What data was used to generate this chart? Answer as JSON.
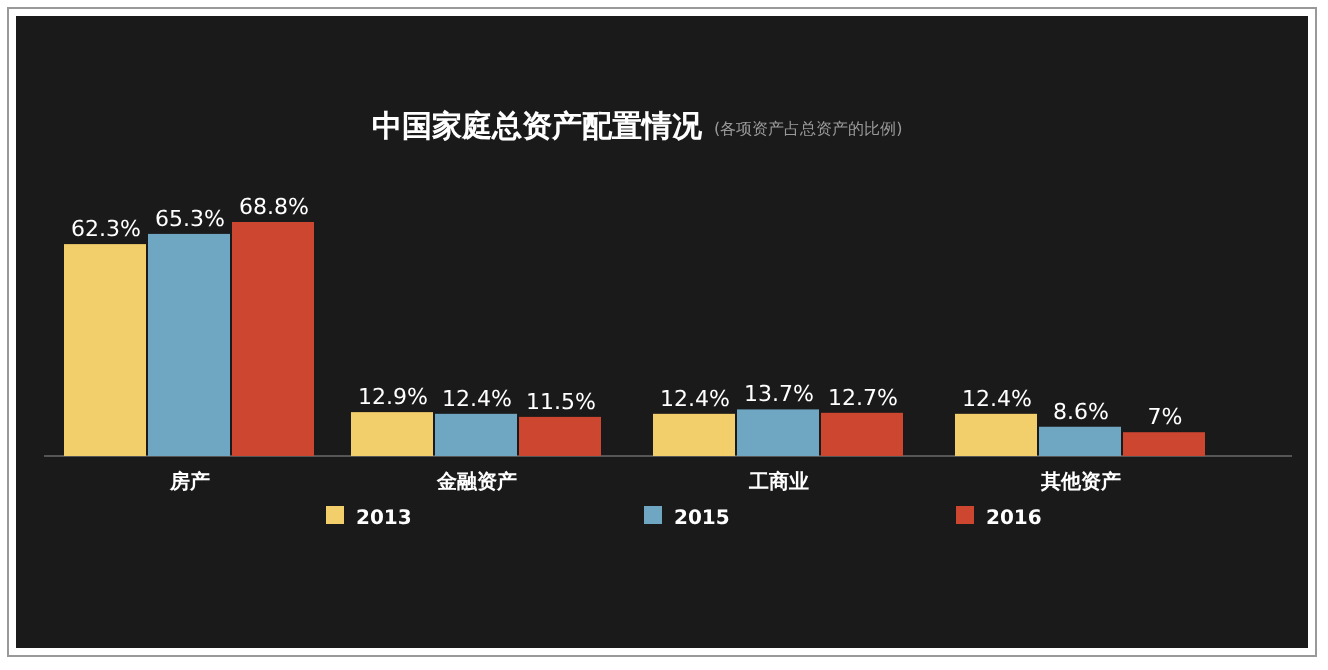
{
  "chart_data": {
    "type": "bar",
    "title": "中国家庭总资产配置情况",
    "subtitle": "(各项资产占总资产的比例)",
    "categories": [
      "房产",
      "金融资产",
      "工商业",
      "其他资产"
    ],
    "legend": "bottom",
    "series": [
      {
        "name": "2013",
        "color": "#f2cf6a",
        "values": [
          62.3,
          12.9,
          12.4,
          12.4
        ],
        "value_labels": [
          "62.3%",
          "12.9%",
          "12.4%",
          "12.4%"
        ]
      },
      {
        "name": "2015",
        "color": "#6fa6c2",
        "values": [
          65.3,
          12.4,
          13.7,
          8.6
        ],
        "value_labels": [
          "65.3%",
          "12.4%",
          "13.7%",
          "8.6%"
        ]
      },
      {
        "name": "2016",
        "color": "#cc4630",
        "values": [
          68.8,
          11.5,
          12.7,
          7
        ],
        "value_labels": [
          "68.8%",
          "11.5%",
          "12.7%",
          "7%"
        ]
      }
    ]
  }
}
